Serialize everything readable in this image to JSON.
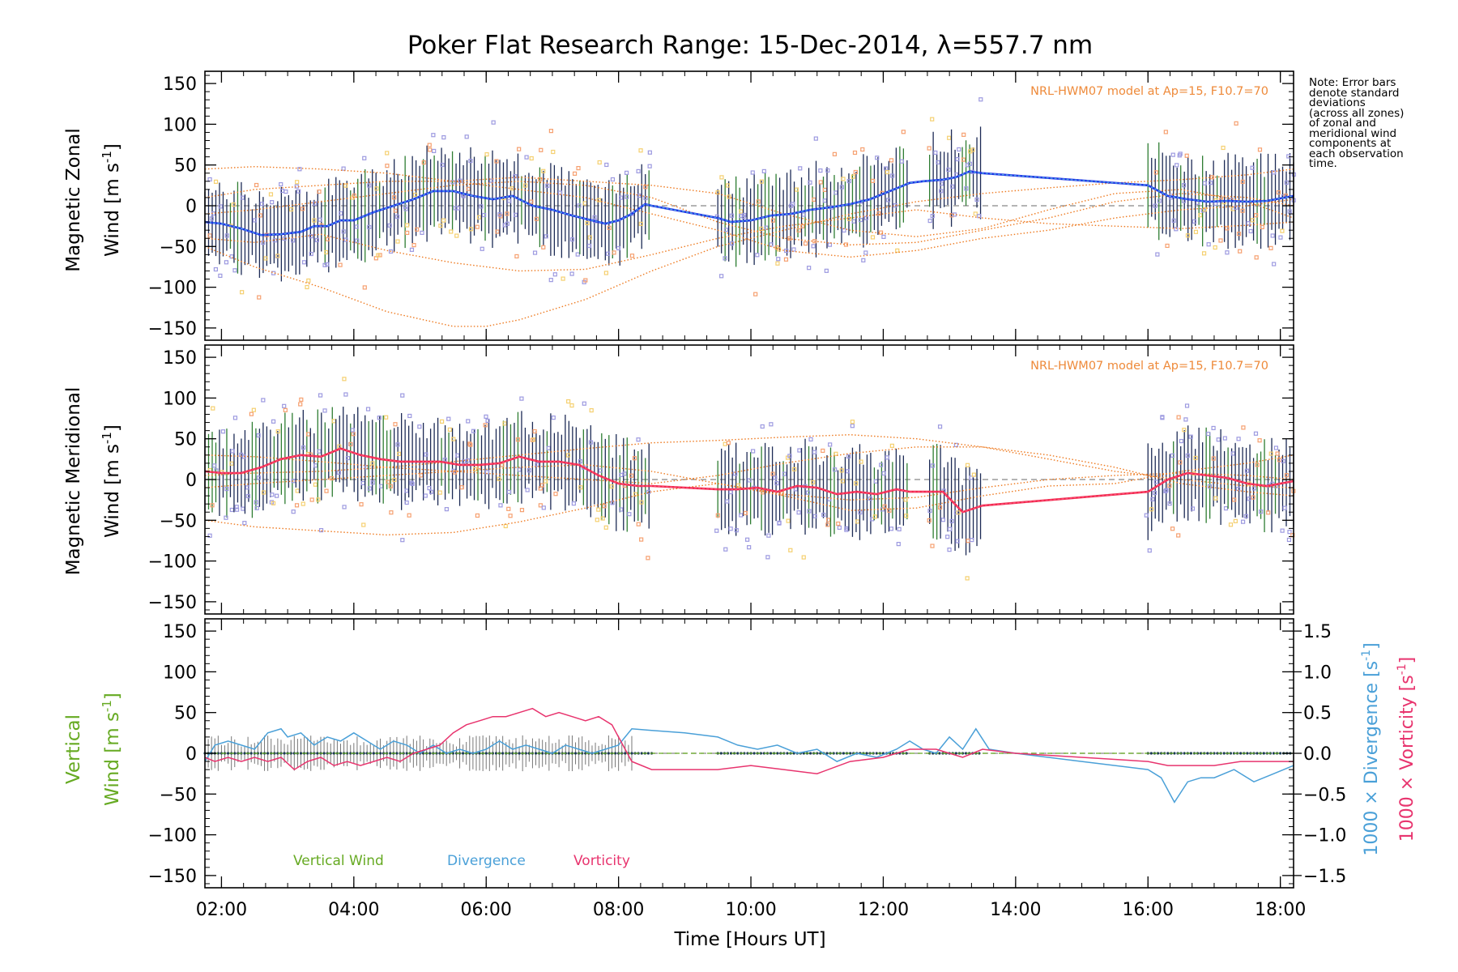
{
  "title": "Poker Flat Research Range: 15-Dec-2014, λ=557.7 nm",
  "note_lines": [
    "Note: Error bars",
    "denote standard",
    "deviations",
    "(across all zones)",
    "of zonal and",
    "meridional wind",
    "components at",
    "each observation",
    "time."
  ],
  "colors": {
    "zonal_mean": "#1f2ee8",
    "zonal_mean_light": "#4aa3e0",
    "meridional_mean": "#ee2a4a",
    "meridional_mean_light": "#ff4a7a",
    "model": "#ee7a20",
    "scatter_purple": "#9d9ae0",
    "scatter_orange": "#f6a070",
    "scatter_yellow": "#f5d070",
    "errorbar_dark": "#1c2a55",
    "errorbar_green": "#2e7d32",
    "vertical": "#66aa22",
    "divergence": "#4aa0d8",
    "vorticity": "#e8346e",
    "zero_line": "#888888"
  },
  "chart_data": [
    {
      "type": "line",
      "panel": "zonal",
      "ylabel": {
        "line1": "Magnetic Zonal",
        "line2_prefix": "Wind ",
        "unit": "[m s",
        "unit_sup": "-1",
        "unit_close": "]"
      },
      "model_label": "NRL-HWM07 model at Ap=15, F10.7=70",
      "xlim": [
        1.75,
        18.2
      ],
      "ylim": [
        -165,
        165
      ],
      "yticks": [
        150,
        100,
        50,
        0,
        -50,
        -100,
        -150
      ],
      "series": [
        {
          "role": "mean",
          "x": [
            1.75,
            2.0,
            2.3,
            2.6,
            2.9,
            3.2,
            3.4,
            3.6,
            3.8,
            4.0,
            4.3,
            4.6,
            4.9,
            5.2,
            5.5,
            5.8,
            6.1,
            6.4,
            6.7,
            7.0,
            7.3,
            7.6,
            7.8,
            8.0,
            8.2,
            8.4,
            8.5,
            9.5,
            9.7,
            10.0,
            10.3,
            10.6,
            10.9,
            11.2,
            11.5,
            11.8,
            12.1,
            12.4,
            12.6,
            12.9,
            13.1,
            13.3,
            13.5,
            16.0,
            16.3,
            16.6,
            16.9,
            17.2,
            17.5,
            17.8,
            18.2
          ],
          "y": [
            -20,
            -22,
            -28,
            -36,
            -35,
            -32,
            -25,
            -25,
            -18,
            -18,
            -8,
            0,
            8,
            18,
            18,
            12,
            8,
            12,
            0,
            -5,
            -12,
            -18,
            -22,
            -18,
            -10,
            2,
            0,
            -15,
            -20,
            -18,
            -12,
            -10,
            -5,
            -2,
            2,
            8,
            18,
            28,
            30,
            32,
            35,
            42,
            40,
            25,
            12,
            8,
            5,
            6,
            5,
            6,
            12
          ]
        },
        {
          "role": "model",
          "x": [
            1.75,
            2.5,
            3.5,
            4.5,
            5.5,
            6.0,
            6.5,
            7.5,
            8.5,
            9.5,
            10.5,
            11.5,
            12.5,
            13.5,
            14.5,
            15.5,
            16.5,
            17.5,
            18.2
          ],
          "y": [
            -50,
            -75,
            -100,
            -130,
            -148,
            -148,
            -140,
            -115,
            -80,
            -50,
            -30,
            -10,
            5,
            15,
            22,
            28,
            32,
            38,
            45
          ]
        },
        {
          "role": "model",
          "x": [
            1.75,
            2.5,
            3.5,
            4.5,
            5.5,
            6.5,
            7.5,
            8.5,
            9.5,
            10.5,
            11.5,
            12.5,
            13.5,
            14.5,
            15.5,
            16.5,
            17.5,
            18.2
          ],
          "y": [
            -40,
            -45,
            -35,
            -55,
            -70,
            -80,
            -78,
            -60,
            -40,
            -25,
            -15,
            -5,
            -15,
            -22,
            -25,
            -28,
            -24,
            -20
          ]
        },
        {
          "role": "model",
          "x": [
            1.75,
            2.5,
            3.5,
            4.5,
            5.5,
            6.5,
            7.5,
            8.5,
            9.5,
            10.5,
            11.5,
            12.5,
            13.5,
            14.5,
            15.5,
            16.5,
            17.5,
            18.2
          ],
          "y": [
            45,
            48,
            45,
            40,
            30,
            20,
            10,
            -10,
            -30,
            -55,
            -63,
            -55,
            -40,
            -30,
            -15,
            -5,
            0,
            8
          ]
        },
        {
          "role": "model",
          "x": [
            1.75,
            2.5,
            3.5,
            4.5,
            5.5,
            6.5,
            7.5,
            8.5,
            9.5,
            10.5,
            11.5,
            12.5,
            13.5,
            14.5,
            15.5,
            16.5,
            17.5,
            18.2
          ],
          "y": [
            -10,
            -5,
            5,
            15,
            25,
            30,
            25,
            10,
            -20,
            -40,
            -48,
            -45,
            -30,
            -15,
            5,
            15,
            10,
            0
          ]
        },
        {
          "role": "model",
          "x": [
            1.75,
            2.5,
            3.5,
            4.5,
            5.5,
            6.5,
            7.5,
            8.5,
            9.5,
            10.5,
            11.5,
            12.5,
            13.5,
            14.5,
            15.5,
            16.5,
            17.5,
            18.2
          ],
          "y": [
            10,
            20,
            25,
            30,
            30,
            35,
            30,
            25,
            15,
            -10,
            -30,
            -38,
            -28,
            -5,
            15,
            20,
            5,
            -15
          ]
        }
      ]
    },
    {
      "type": "line",
      "panel": "meridional",
      "ylabel": {
        "line1": "Magnetic Meridional",
        "line2_prefix": "Wind ",
        "unit": "[m s",
        "unit_sup": "-1",
        "unit_close": "]"
      },
      "model_label": "NRL-HWM07 model at Ap=15, F10.7=70",
      "xlim": [
        1.75,
        18.2
      ],
      "ylim": [
        -165,
        165
      ],
      "yticks": [
        150,
        100,
        50,
        0,
        -50,
        -100,
        -150
      ],
      "series": [
        {
          "role": "mean",
          "x": [
            1.75,
            2.0,
            2.3,
            2.6,
            2.9,
            3.2,
            3.5,
            3.8,
            4.1,
            4.4,
            4.7,
            5.0,
            5.3,
            5.6,
            5.9,
            6.2,
            6.5,
            6.8,
            7.1,
            7.4,
            7.7,
            8.0,
            8.3,
            8.5,
            9.5,
            9.8,
            10.1,
            10.4,
            10.7,
            11.0,
            11.3,
            11.6,
            11.9,
            12.2,
            12.4,
            12.6,
            12.9,
            13.2,
            13.5,
            16.0,
            16.3,
            16.6,
            16.9,
            17.2,
            17.5,
            17.8,
            18.2
          ],
          "y": [
            10,
            8,
            8,
            15,
            25,
            30,
            28,
            38,
            30,
            25,
            22,
            22,
            22,
            18,
            18,
            20,
            28,
            22,
            22,
            18,
            5,
            -5,
            -8,
            -8,
            -12,
            -12,
            -10,
            -15,
            -8,
            -10,
            -18,
            -15,
            -18,
            -12,
            -15,
            -15,
            -15,
            -40,
            -32,
            -15,
            0,
            8,
            5,
            2,
            -5,
            -8,
            -2
          ]
        },
        {
          "role": "model",
          "x": [
            1.75,
            2.5,
            3.5,
            4.5,
            5.5,
            6.5,
            7.5,
            8.5,
            9.5,
            10.5,
            11.5,
            12.5,
            13.5,
            14.5,
            15.5,
            16.5,
            17.5,
            18.2
          ],
          "y": [
            -50,
            -58,
            -63,
            -68,
            -65,
            -52,
            -35,
            -15,
            -5,
            -20,
            -38,
            -35,
            -20,
            -8,
            -5,
            10,
            20,
            30
          ]
        },
        {
          "role": "model",
          "x": [
            1.75,
            2.5,
            3.5,
            4.5,
            5.5,
            6.5,
            7.5,
            8.5,
            9.5,
            10.5,
            11.5,
            12.5,
            13.5,
            14.5,
            15.5,
            16.5,
            17.5,
            18.2
          ],
          "y": [
            30,
            28,
            22,
            15,
            10,
            5,
            0,
            -5,
            5,
            20,
            32,
            40,
            40,
            30,
            15,
            -5,
            -15,
            -20
          ]
        },
        {
          "role": "model",
          "x": [
            1.75,
            2.5,
            3.5,
            4.5,
            5.5,
            6.5,
            7.5,
            8.5,
            9.5,
            10.5,
            11.5,
            12.5,
            13.5,
            14.5,
            15.5,
            16.5,
            17.5,
            18.2
          ],
          "y": [
            5,
            8,
            10,
            15,
            22,
            30,
            38,
            45,
            48,
            52,
            55,
            50,
            40,
            25,
            10,
            0,
            -8,
            -10
          ]
        },
        {
          "role": "model",
          "x": [
            1.75,
            2.5,
            3.5,
            4.5,
            5.5,
            6.5,
            7.5,
            8.5,
            9.5,
            10.5,
            11.5,
            12.5,
            13.5,
            14.5,
            15.5,
            16.5,
            17.5,
            18.2
          ],
          "y": [
            -10,
            -5,
            0,
            5,
            10,
            15,
            18,
            10,
            -5,
            -18,
            -25,
            -22,
            -10,
            0,
            5,
            8,
            5,
            0
          ]
        }
      ]
    },
    {
      "type": "line",
      "panel": "vertical",
      "ylabel": {
        "line1": "Vertical",
        "line2_prefix": "Wind ",
        "unit": "[m s",
        "unit_sup": "-1",
        "unit_close": "]"
      },
      "xlabel": "Time [Hours UT]",
      "xlim": [
        1.75,
        18.2
      ],
      "xtick_values": [
        2,
        4,
        6,
        8,
        10,
        12,
        14,
        16,
        18
      ],
      "xtick_labels": [
        "02:00",
        "04:00",
        "06:00",
        "08:00",
        "10:00",
        "12:00",
        "14:00",
        "16:00",
        "18:00"
      ],
      "ylim": [
        -165,
        165
      ],
      "yticks": [
        150,
        100,
        50,
        0,
        -50,
        -100,
        -150
      ],
      "y2lim": [
        -1.65,
        1.65
      ],
      "y2ticks": [
        1.5,
        1.0,
        0.5,
        0.0,
        -0.5,
        -1.0,
        -1.5
      ],
      "y2tick_labels": [
        "1.5",
        "1.0",
        "0.5",
        "0.0",
        "−0.5",
        "−1.0",
        "−1.5"
      ],
      "y2label_divergence": {
        "text": "1000 × Divergence ",
        "unit": "[s",
        "unit_sup": "-1",
        "unit_close": "]"
      },
      "y2label_vorticity": {
        "text": "1000 × Vorticity ",
        "unit": "[s",
        "unit_sup": "-1",
        "unit_close": "]"
      },
      "legend": [
        "Vertical Wind",
        "Divergence",
        "Vorticity"
      ],
      "series": [
        {
          "name": "Divergence",
          "axis": "y2",
          "x": [
            1.75,
            1.9,
            2.1,
            2.3,
            2.5,
            2.7,
            2.9,
            3.0,
            3.2,
            3.4,
            3.6,
            3.8,
            4.0,
            4.2,
            4.4,
            4.6,
            4.8,
            5.0,
            5.2,
            5.4,
            5.6,
            5.8,
            6.0,
            6.2,
            6.4,
            6.6,
            6.8,
            7.0,
            7.2,
            7.4,
            7.6,
            7.8,
            8.0,
            8.2,
            8.5,
            9.0,
            9.5,
            9.8,
            10.1,
            10.4,
            10.7,
            11.0,
            11.3,
            11.6,
            11.9,
            12.2,
            12.4,
            12.6,
            12.8,
            13.0,
            13.2,
            13.4,
            13.6,
            14.0,
            15.0,
            16.0,
            16.2,
            16.4,
            16.6,
            16.8,
            17.0,
            17.3,
            17.6,
            17.9,
            18.2
          ],
          "y": [
            -0.1,
            0.1,
            0.15,
            0.1,
            0.05,
            0.25,
            0.3,
            0.2,
            0.25,
            0.1,
            0.2,
            0.15,
            0.25,
            0.15,
            0.05,
            0.15,
            0.1,
            0.0,
            0.1,
            0.0,
            0.05,
            0.0,
            0.05,
            0.15,
            0.05,
            0.1,
            0.05,
            0.0,
            0.1,
            0.05,
            0.0,
            0.05,
            0.1,
            0.3,
            0.28,
            0.25,
            0.2,
            0.1,
            0.05,
            0.1,
            0.0,
            0.05,
            -0.1,
            0.0,
            -0.05,
            0.05,
            0.15,
            0.05,
            0.0,
            0.2,
            0.05,
            0.3,
            0.05,
            0.0,
            -0.1,
            -0.2,
            -0.3,
            -0.6,
            -0.35,
            -0.3,
            -0.3,
            -0.2,
            -0.35,
            -0.25,
            -0.15
          ]
        },
        {
          "name": "Vorticity",
          "axis": "y2",
          "x": [
            1.75,
            1.9,
            2.1,
            2.3,
            2.5,
            2.7,
            2.9,
            3.1,
            3.3,
            3.5,
            3.7,
            3.9,
            4.1,
            4.3,
            4.5,
            4.7,
            4.9,
            5.1,
            5.3,
            5.5,
            5.7,
            5.9,
            6.1,
            6.3,
            6.5,
            6.7,
            6.9,
            7.1,
            7.3,
            7.5,
            7.7,
            7.9,
            8.0,
            8.2,
            8.5,
            9.0,
            9.5,
            10.0,
            10.5,
            11.0,
            11.5,
            12.0,
            12.4,
            12.8,
            13.2,
            13.5,
            14.0,
            15.0,
            16.0,
            16.3,
            16.6,
            17.0,
            17.4,
            17.8,
            18.2
          ],
          "y": [
            -0.05,
            -0.1,
            -0.05,
            -0.1,
            -0.05,
            -0.1,
            -0.05,
            -0.2,
            -0.1,
            -0.05,
            -0.15,
            -0.1,
            -0.15,
            -0.1,
            -0.05,
            -0.1,
            0.0,
            0.05,
            0.1,
            0.25,
            0.35,
            0.4,
            0.45,
            0.45,
            0.5,
            0.55,
            0.45,
            0.5,
            0.45,
            0.4,
            0.45,
            0.35,
            0.2,
            -0.1,
            -0.2,
            -0.2,
            -0.2,
            -0.15,
            -0.2,
            -0.25,
            -0.1,
            -0.05,
            0.05,
            0.05,
            -0.05,
            0.05,
            0.0,
            -0.05,
            -0.1,
            -0.15,
            -0.15,
            -0.15,
            -0.1,
            -0.1,
            -0.1
          ]
        }
      ]
    }
  ]
}
